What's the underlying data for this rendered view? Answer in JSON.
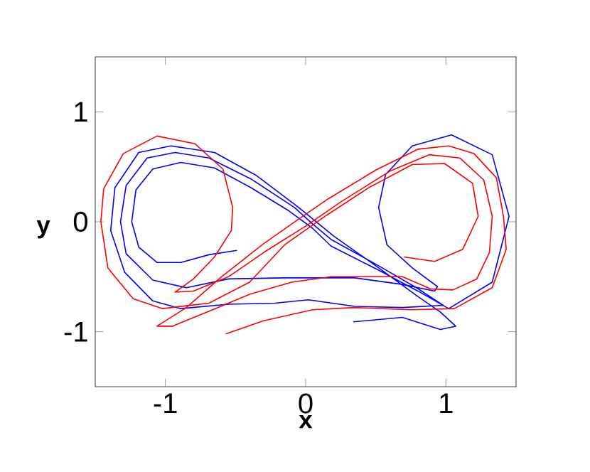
{
  "chart_data": {
    "type": "line",
    "xlabel": "x",
    "ylabel": "y",
    "xlim": [
      -1.5,
      1.5
    ],
    "ylim": [
      -1.5,
      1.5
    ],
    "xticks": [
      -1,
      0,
      1
    ],
    "yticks": [
      -1,
      0,
      1
    ],
    "marker": "none",
    "line_style": "solid",
    "series": [
      {
        "color": "#0000ff",
        "x": [
          -0.49,
          -0.69,
          -0.89,
          -1.06,
          -1.19,
          -1.24,
          -1.21,
          -1.09,
          -0.89,
          -0.65,
          -0.39,
          -0.12,
          0.05,
          0.18,
          0.52,
          0.8,
          1.02,
          1.33,
          1.45,
          1.33,
          1.04,
          0.76,
          0.57,
          0.52,
          0.58,
          0.76,
          0.94,
          0.92,
          0.69,
          0.35,
          -0.15,
          -0.55,
          -0.85,
          -1.09,
          -1.28,
          -1.32,
          -1.28,
          -1.13,
          -0.93,
          -0.69,
          -0.39,
          -0.08,
          0.05,
          0.18,
          0.52,
          0.79,
          0.98,
          0.69,
          0.35,
          0.02,
          -0.22,
          -0.55,
          -0.89,
          -1.09,
          -1.29,
          -1.39,
          -1.36,
          -1.19,
          -0.96,
          -0.65,
          -0.35,
          -0.05,
          0.2,
          0.5,
          0.8,
          0.96,
          1.07,
          0.96,
          0.69,
          0.34
        ],
        "values": [
          -0.26,
          -0.3,
          -0.37,
          -0.37,
          -0.23,
          0.0,
          0.29,
          0.48,
          0.54,
          0.49,
          0.31,
          0.1,
          -0.06,
          -0.22,
          -0.44,
          -0.63,
          -0.79,
          -0.55,
          0.05,
          0.61,
          0.79,
          0.69,
          0.43,
          0.13,
          -0.21,
          -0.42,
          -0.59,
          -0.63,
          -0.57,
          -0.51,
          -0.51,
          -0.52,
          -0.6,
          -0.53,
          -0.29,
          0.0,
          0.33,
          0.58,
          0.63,
          0.58,
          0.39,
          0.13,
          -0.02,
          -0.16,
          -0.4,
          -0.6,
          -0.76,
          -0.78,
          -0.77,
          -0.71,
          -0.74,
          -0.75,
          -0.79,
          -0.72,
          -0.46,
          -0.08,
          0.31,
          0.63,
          0.69,
          0.63,
          0.42,
          0.13,
          -0.13,
          -0.4,
          -0.68,
          -0.82,
          -0.95,
          -0.98,
          -0.87,
          -0.91
        ]
      },
      {
        "color": "#ff0000",
        "x": [
          -0.57,
          -0.3,
          0.05,
          0.35,
          0.75,
          1.06,
          1.33,
          1.43,
          1.41,
          1.36,
          1.2,
          1.02,
          0.8,
          0.5,
          0.15,
          -0.1,
          -0.3,
          -0.6,
          -0.85,
          -1.06,
          -0.95,
          -0.7,
          -0.4,
          -0.1,
          0.18,
          0.69,
          0.89,
          1.05,
          1.22,
          1.31,
          1.33,
          1.27,
          1.1,
          0.88,
          0.6,
          0.25,
          0.0,
          -0.3,
          -0.55,
          -0.8,
          -0.93,
          -0.8,
          -0.65,
          -0.53,
          -0.52,
          -0.59,
          -0.79,
          -1.06,
          -1.3,
          -1.44,
          -1.46,
          -1.41,
          -1.23,
          -1.02,
          -0.69,
          -0.4,
          -0.15,
          0.15,
          0.45,
          0.76,
          0.99,
          1.19,
          1.23,
          1.12,
          0.92,
          0.7
        ],
        "values": [
          -1.02,
          -0.9,
          -0.8,
          -0.78,
          -0.8,
          -0.79,
          -0.6,
          -0.25,
          0.05,
          0.4,
          0.62,
          0.69,
          0.66,
          0.47,
          0.2,
          -0.02,
          -0.2,
          -0.5,
          -0.78,
          -0.95,
          -0.95,
          -0.82,
          -0.66,
          -0.55,
          -0.5,
          -0.5,
          -0.61,
          -0.62,
          -0.52,
          -0.28,
          0.05,
          0.38,
          0.58,
          0.61,
          0.46,
          0.18,
          -0.04,
          -0.28,
          -0.5,
          -0.63,
          -0.64,
          -0.52,
          -0.32,
          -0.08,
          0.13,
          0.48,
          0.71,
          0.78,
          0.62,
          0.3,
          0.0,
          -0.42,
          -0.7,
          -0.79,
          -0.74,
          -0.55,
          -0.21,
          0.06,
          0.31,
          0.52,
          0.53,
          0.35,
          0.05,
          -0.25,
          -0.36,
          -0.32
        ]
      }
    ]
  }
}
